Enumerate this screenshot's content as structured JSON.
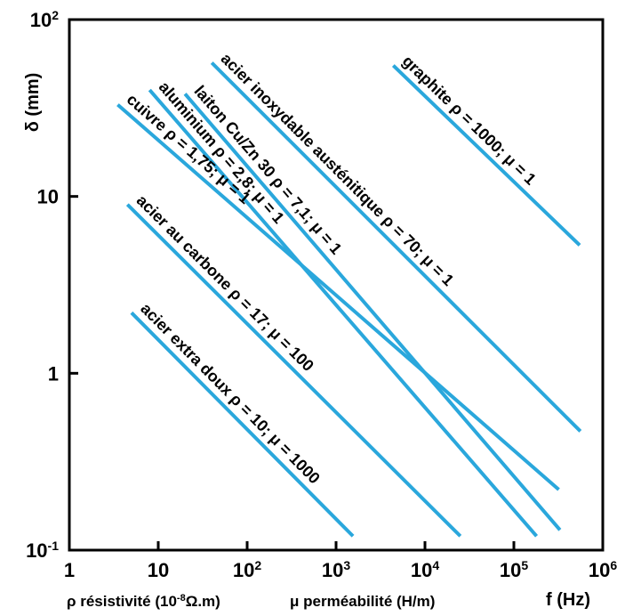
{
  "chart_data": {
    "type": "line",
    "x_scale": "log",
    "y_scale": "log",
    "xlim": [
      1,
      1000000
    ],
    "ylim": [
      0.1,
      100
    ],
    "grid": false,
    "x_ticks": [
      {
        "value": 1,
        "base": "1",
        "exp": ""
      },
      {
        "value": 10,
        "base": "10",
        "exp": ""
      },
      {
        "value": 100,
        "base": "10",
        "exp": "2"
      },
      {
        "value": 1000,
        "base": "10",
        "exp": "3"
      },
      {
        "value": 10000,
        "base": "10",
        "exp": "4"
      },
      {
        "value": 100000,
        "base": "10",
        "exp": "5"
      },
      {
        "value": 1000000,
        "base": "10",
        "exp": "6"
      }
    ],
    "y_ticks": [
      {
        "value": 0.1,
        "base": "10",
        "exp": "-1"
      },
      {
        "value": 1,
        "base": "1",
        "exp": ""
      },
      {
        "value": 10,
        "base": "10",
        "exp": ""
      },
      {
        "value": 100,
        "base": "10",
        "exp": "2"
      }
    ],
    "xlabel": "f (Hz)",
    "ylabel": "δ (mm)",
    "x_notes": {
      "rho": {
        "pre": "ρ résistivité (10",
        "exp": "-8",
        "post": "Ω.m)"
      },
      "mu": {
        "text": "μ perméabilité (H/m)"
      }
    },
    "series": [
      {
        "name": "graphite ρ = 1000; μ = 1",
        "x": [
          4400,
          550000
        ],
        "y": [
          55,
          5.3
        ]
      },
      {
        "name": "acier inoxydable austénitique ρ = 70; μ = 1",
        "x": [
          40,
          560000
        ],
        "y": [
          57,
          0.47
        ]
      },
      {
        "name": "laiton Cu/Zn 30 ρ = 7,1; μ = 1",
        "x": [
          20,
          330000
        ],
        "y": [
          38,
          0.13
        ]
      },
      {
        "name": "aluminium ρ = 2,8; μ = 1",
        "x": [
          8,
          180000
        ],
        "y": [
          40,
          0.12
        ]
      },
      {
        "name": "cuivre ρ = 1,75; μ = 1",
        "x": [
          3.5,
          320000
        ],
        "y": [
          33,
          0.22
        ]
      },
      {
        "name": "acier au carbone ρ = 17; μ = 100",
        "x": [
          4.5,
          25000
        ],
        "y": [
          9,
          0.12
        ]
      },
      {
        "name": "acier extra doux ρ = 10; μ = 1000",
        "x": [
          5,
          1550
        ],
        "y": [
          2.2,
          0.12
        ]
      }
    ]
  }
}
